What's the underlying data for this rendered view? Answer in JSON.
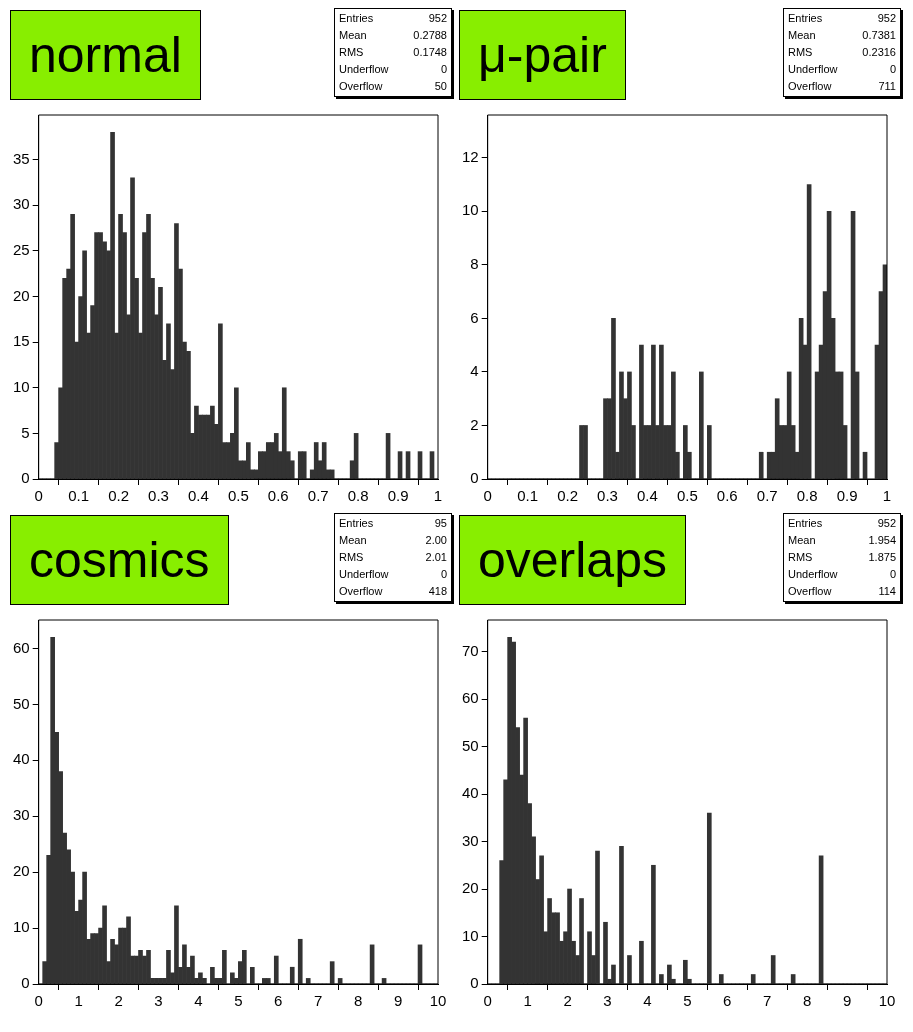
{
  "chart_data": [
    {
      "type": "histogram",
      "title": "normal",
      "color": "#333333",
      "grid": false,
      "xlim": [
        0,
        1
      ],
      "ylim": [
        0,
        39.9
      ],
      "xticks": [
        0,
        0.1,
        0.2,
        0.3,
        0.4,
        0.5,
        0.6,
        0.7,
        0.8,
        0.9,
        1
      ],
      "yticks": [
        0,
        5,
        10,
        15,
        20,
        25,
        30,
        35
      ],
      "annotations": [
        "Entries 952",
        "Mean 0.2788",
        "RMS 0.1748",
        "Underflow 0",
        "Overflow 50"
      ],
      "bins": [
        0,
        0.01,
        0.02,
        0.03,
        0.04,
        0.05,
        0.06,
        0.07,
        0.08,
        0.09,
        0.1,
        0.11,
        0.12,
        0.13,
        0.14,
        0.15,
        0.16,
        0.17,
        0.18,
        0.19,
        0.2,
        0.21,
        0.22,
        0.23,
        0.24,
        0.25,
        0.26,
        0.27,
        0.28,
        0.29,
        0.3,
        0.31,
        0.32,
        0.33,
        0.34,
        0.35,
        0.36,
        0.37,
        0.38,
        0.39,
        0.4,
        0.41,
        0.42,
        0.43,
        0.44,
        0.45,
        0.46,
        0.47,
        0.48,
        0.49,
        0.5,
        0.51,
        0.52,
        0.53,
        0.54,
        0.55,
        0.56,
        0.57,
        0.58,
        0.59,
        0.6,
        0.61,
        0.62,
        0.63,
        0.64,
        0.65,
        0.66,
        0.67,
        0.68,
        0.69,
        0.7,
        0.71,
        0.72,
        0.73,
        0.74,
        0.75,
        0.76,
        0.77,
        0.78,
        0.79,
        0.8,
        0.81,
        0.82,
        0.83,
        0.84,
        0.85,
        0.86,
        0.87,
        0.88,
        0.89,
        0.9,
        0.91,
        0.92,
        0.93,
        0.94,
        0.95,
        0.96,
        0.97,
        0.98,
        0.99,
        1
      ],
      "values": [
        0,
        0,
        0,
        0,
        4,
        10,
        22,
        23,
        29,
        15,
        20,
        25,
        16,
        19,
        27,
        27,
        26,
        25,
        38,
        16,
        29,
        27,
        18,
        33,
        22,
        16,
        27,
        29,
        22,
        18,
        21,
        13,
        17,
        12,
        28,
        23,
        15,
        14,
        5,
        8,
        7,
        7,
        7,
        8,
        6,
        17,
        4,
        4,
        5,
        10,
        2,
        2,
        4,
        1,
        1,
        3,
        3,
        4,
        4,
        5,
        3,
        10,
        3,
        2,
        0,
        3,
        3,
        0,
        1,
        4,
        2,
        4,
        1,
        1,
        0,
        0,
        0,
        0,
        2,
        5,
        0,
        0,
        0,
        0,
        0,
        0,
        0,
        5,
        0,
        0,
        3,
        0,
        3,
        0,
        0,
        3,
        0,
        0,
        3,
        0
      ]
    },
    {
      "type": "histogram",
      "title": "μ-pair",
      "color": "#333333",
      "grid": false,
      "xlim": [
        0,
        1
      ],
      "ylim": [
        0,
        13.6
      ],
      "xticks": [
        0,
        0.1,
        0.2,
        0.3,
        0.4,
        0.5,
        0.6,
        0.7,
        0.8,
        0.9,
        1
      ],
      "yticks": [
        0,
        2,
        4,
        6,
        8,
        10,
        12
      ],
      "annotations": [
        "Entries 952",
        "Mean 0.7381",
        "RMS 0.2316",
        "Underflow 0",
        "Overflow 711"
      ],
      "bins": [
        0,
        0.01,
        0.02,
        0.03,
        0.04,
        0.05,
        0.06,
        0.07,
        0.08,
        0.09,
        0.1,
        0.11,
        0.12,
        0.13,
        0.14,
        0.15,
        0.16,
        0.17,
        0.18,
        0.19,
        0.2,
        0.21,
        0.22,
        0.23,
        0.24,
        0.25,
        0.26,
        0.27,
        0.28,
        0.29,
        0.3,
        0.31,
        0.32,
        0.33,
        0.34,
        0.35,
        0.36,
        0.37,
        0.38,
        0.39,
        0.4,
        0.41,
        0.42,
        0.43,
        0.44,
        0.45,
        0.46,
        0.47,
        0.48,
        0.49,
        0.5,
        0.51,
        0.52,
        0.53,
        0.54,
        0.55,
        0.56,
        0.57,
        0.58,
        0.59,
        0.6,
        0.61,
        0.62,
        0.63,
        0.64,
        0.65,
        0.66,
        0.67,
        0.68,
        0.69,
        0.7,
        0.71,
        0.72,
        0.73,
        0.74,
        0.75,
        0.76,
        0.77,
        0.78,
        0.79,
        0.8,
        0.81,
        0.82,
        0.83,
        0.84,
        0.85,
        0.86,
        0.87,
        0.88,
        0.89,
        0.9,
        0.91,
        0.92,
        0.93,
        0.94,
        0.95,
        0.96,
        0.97,
        0.98,
        0.99,
        1
      ],
      "values": [
        0,
        0,
        0,
        0,
        0,
        0,
        0,
        0,
        0,
        0,
        0,
        0,
        0,
        0,
        0,
        0,
        0,
        0,
        0,
        0,
        0,
        0,
        0,
        2,
        2,
        0,
        0,
        0,
        0,
        3,
        3,
        6,
        1,
        4,
        3,
        4,
        2,
        0,
        5,
        2,
        2,
        5,
        2,
        5,
        2,
        2,
        4,
        1,
        0,
        2,
        1,
        0,
        0,
        4,
        0,
        2,
        0,
        0,
        0,
        0,
        0,
        0,
        0,
        0,
        0,
        0,
        0,
        0,
        1,
        0,
        1,
        1,
        3,
        2,
        2,
        4,
        2,
        1,
        6,
        5,
        11,
        null,
        4,
        5,
        7,
        10,
        6,
        4,
        4,
        2,
        null,
        10,
        4,
        null,
        1,
        null,
        null,
        5,
        7,
        8
      ]
    },
    {
      "type": "histogram",
      "title": "cosmics",
      "color": "#333333",
      "grid": false,
      "xlim": [
        0,
        10
      ],
      "ylim": [
        0,
        65.1
      ],
      "xticks": [
        0,
        1,
        2,
        3,
        4,
        5,
        6,
        7,
        8,
        9,
        10
      ],
      "yticks": [
        0,
        10,
        20,
        30,
        40,
        50,
        60
      ],
      "annotations": [
        "Entries 95",
        "Mean 2.00",
        "RMS 2.01",
        "Underflow 0",
        "Overflow 418"
      ],
      "bins": [
        0,
        0.1,
        0.2,
        0.3,
        0.4,
        0.5,
        0.6,
        0.7,
        0.8,
        0.9,
        1,
        1.1,
        1.2,
        1.3,
        1.4,
        1.5,
        1.6,
        1.7,
        1.8,
        1.9,
        2,
        2.1,
        2.2,
        2.3,
        2.4,
        2.5,
        2.6,
        2.7,
        2.8,
        2.9,
        3,
        3.1,
        3.2,
        3.3,
        3.4,
        3.5,
        3.6,
        3.7,
        3.8,
        3.9,
        4,
        4.1,
        4.2,
        4.3,
        4.4,
        4.5,
        4.6,
        4.7,
        4.8,
        4.9,
        5,
        5.1,
        5.2,
        5.3,
        5.4,
        5.5,
        5.6,
        5.7,
        5.8,
        5.9,
        6,
        6.1,
        6.2,
        6.3,
        6.4,
        6.5,
        6.6,
        6.7,
        6.8,
        6.9,
        7,
        7.1,
        7.2,
        7.3,
        7.4,
        7.5,
        7.6,
        7.7,
        7.8,
        7.9,
        8,
        8.1,
        8.2,
        8.3,
        8.4,
        8.5,
        8.6,
        8.7,
        8.8,
        8.9,
        9,
        9.1,
        9.2,
        9.3,
        9.4,
        9.5,
        9.6,
        9.7,
        9.8,
        9.9,
        10
      ],
      "values": [
        0,
        4,
        23,
        62,
        45,
        38,
        27,
        24,
        20,
        13,
        15,
        20,
        8,
        9,
        9,
        10,
        14,
        4,
        8,
        7,
        10,
        10,
        12,
        5,
        5,
        6,
        5,
        6,
        1,
        1,
        1,
        1,
        6,
        2,
        14,
        3,
        7,
        3,
        5,
        1,
        2,
        1,
        0,
        3,
        1,
        1,
        6,
        0,
        2,
        1,
        4,
        6,
        0,
        3,
        0,
        0,
        1,
        1,
        0,
        5,
        0,
        0,
        0,
        3,
        0,
        8,
        0,
        1,
        0,
        0,
        0,
        0,
        0,
        4,
        0,
        1,
        0,
        0,
        0,
        0,
        0,
        0,
        0,
        7,
        0,
        0,
        1,
        0,
        0,
        0,
        0,
        0,
        0,
        0,
        0,
        7,
        0,
        0,
        0,
        0
      ]
    },
    {
      "type": "histogram",
      "title": "overlaps",
      "color": "#333333",
      "grid": false,
      "xlim": [
        0,
        10
      ],
      "ylim": [
        0,
        76.65
      ],
      "xticks": [
        0,
        1,
        2,
        3,
        4,
        5,
        6,
        7,
        8,
        9,
        10
      ],
      "yticks": [
        0,
        10,
        20,
        30,
        40,
        50,
        60,
        70
      ],
      "annotations": [
        "Entries 952",
        "Mean 1.954",
        "RMS 1.875",
        "Underflow 0",
        "Overflow 114"
      ],
      "bins": [
        0,
        0.1,
        0.2,
        0.3,
        0.4,
        0.5,
        0.6,
        0.7,
        0.8,
        0.9,
        1,
        1.1,
        1.2,
        1.3,
        1.4,
        1.5,
        1.6,
        1.7,
        1.8,
        1.9,
        2,
        2.1,
        2.2,
        2.3,
        2.4,
        2.5,
        2.6,
        2.7,
        2.8,
        2.9,
        3,
        3.1,
        3.2,
        3.3,
        3.4,
        3.5,
        3.6,
        3.7,
        3.8,
        3.9,
        4,
        4.1,
        4.2,
        4.3,
        4.4,
        4.5,
        4.6,
        4.7,
        4.8,
        4.9,
        5,
        5.1,
        5.2,
        5.3,
        5.4,
        5.5,
        5.6,
        5.7,
        5.8,
        5.9,
        6,
        6.1,
        6.2,
        6.3,
        6.4,
        6.5,
        6.6,
        6.7,
        6.8,
        6.9,
        7,
        7.1,
        7.2,
        7.3,
        7.4,
        7.5,
        7.6,
        7.7,
        7.8,
        7.9,
        8,
        8.1,
        8.2,
        8.3,
        8.4,
        8.5,
        8.6,
        8.7,
        8.8,
        8.9,
        9,
        9.1,
        9.2,
        9.3,
        9.4,
        9.5,
        9.6,
        9.7,
        9.8,
        9.9,
        10
      ],
      "values": [
        0,
        0,
        0,
        26,
        43,
        73,
        72,
        54,
        44,
        56,
        38,
        31,
        22,
        27,
        11,
        18,
        15,
        15,
        9,
        11,
        20,
        9,
        6,
        18,
        0,
        11,
        6,
        28,
        0,
        13,
        1,
        4,
        0,
        29,
        0,
        6,
        0,
        0,
        9,
        0,
        0,
        25,
        0,
        2,
        0,
        4,
        1,
        0,
        0,
        5,
        1,
        0,
        0,
        0,
        0,
        36,
        0,
        0,
        2,
        0,
        0,
        0,
        0,
        0,
        0,
        0,
        2,
        0,
        0,
        0,
        0,
        6,
        0,
        0,
        0,
        0,
        2,
        0,
        0,
        0,
        0,
        0,
        0,
        27,
        0,
        0,
        0,
        0,
        0,
        0,
        0,
        0,
        0,
        0,
        0,
        0,
        0,
        0,
        0,
        0
      ]
    }
  ]
}
